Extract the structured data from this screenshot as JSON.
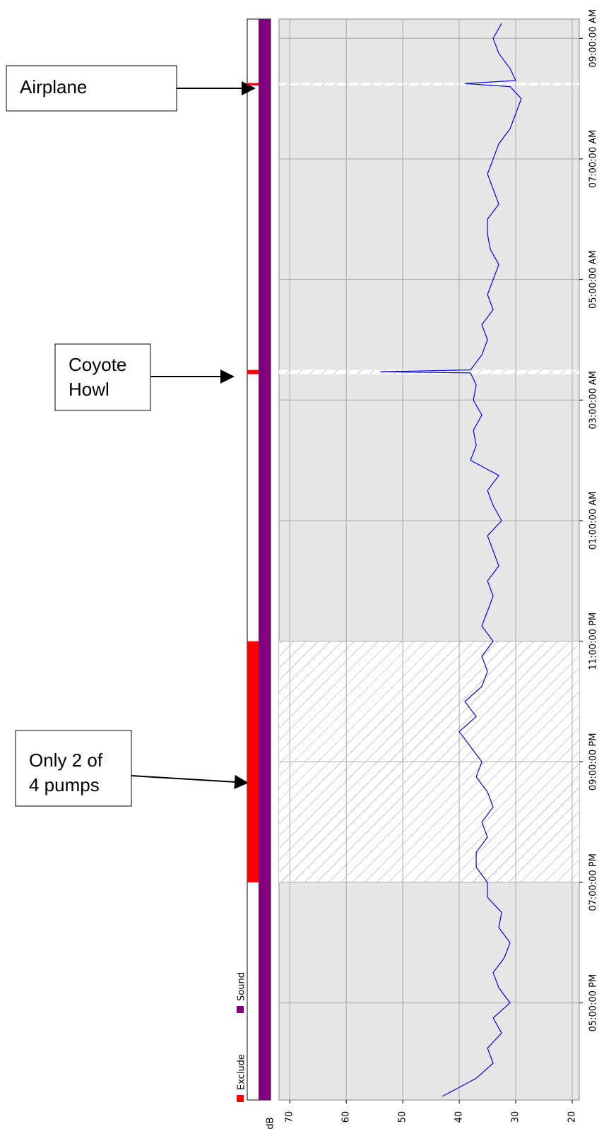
{
  "chart_data": {
    "type": "line",
    "x": [
      15.45,
      15.6,
      15.75,
      16.0,
      16.25,
      16.5,
      16.75,
      17.0,
      17.25,
      17.5,
      17.75,
      18.0,
      18.25,
      18.5,
      18.75,
      19.0,
      19.25,
      19.5,
      19.75,
      20.0,
      20.25,
      20.5,
      20.75,
      21.0,
      21.25,
      21.5,
      21.75,
      22.0,
      22.25,
      22.5,
      22.75,
      23.0,
      23.25,
      23.5,
      23.75,
      24.0,
      24.25,
      24.5,
      24.75,
      25.0,
      25.25,
      25.5,
      25.75,
      26.0,
      26.25,
      26.5,
      26.75,
      27.0,
      27.25,
      27.45,
      27.47,
      27.5,
      27.75,
      28.0,
      28.25,
      28.5,
      28.75,
      29.0,
      29.25,
      29.5,
      29.75,
      30.0,
      30.25,
      30.5,
      30.75,
      31.0,
      31.25,
      31.5,
      31.75,
      32.0,
      32.2,
      32.25,
      32.3,
      32.5,
      32.75,
      33.0,
      33.25
    ],
    "series": [
      {
        "color": "#0000ff",
        "values": [
          43,
          40,
          37,
          34,
          35,
          32.5,
          34,
          31,
          33,
          34,
          32,
          31,
          33,
          32.5,
          35,
          35,
          37,
          37,
          35,
          36,
          34,
          35,
          37,
          36,
          38,
          40,
          37,
          39,
          36,
          35,
          36,
          34,
          36,
          35,
          34,
          35,
          33,
          34,
          35,
          32.5,
          34,
          35,
          33,
          38,
          37,
          37.5,
          36,
          37.5,
          37,
          38,
          54,
          38,
          36,
          35,
          36,
          34,
          35,
          34,
          33,
          34.5,
          35,
          35,
          33,
          34,
          35,
          34,
          33,
          31,
          30,
          29,
          31,
          39,
          30,
          31,
          33,
          34,
          32.5
        ]
      }
    ],
    "xlim": [
      15.39,
      33.32
    ],
    "xticks": [
      {
        "value": 17,
        "label": "05:00:00 PM"
      },
      {
        "value": 19,
        "label": "07:00:00 PM"
      },
      {
        "value": 21,
        "label": "09:00:00 PM"
      },
      {
        "value": 23,
        "label": "11:00:00 PM"
      },
      {
        "value": 25,
        "label": "01:00:00 AM"
      },
      {
        "value": 27,
        "label": "03:00:00 AM"
      },
      {
        "value": 29,
        "label": "05:00:00 AM"
      },
      {
        "value": 31,
        "label": "07:00:00 AM"
      },
      {
        "value": 33,
        "label": "09:00:00 AM"
      }
    ],
    "ylim": [
      71.9,
      18.75
    ],
    "yticks": [
      70,
      60,
      50,
      40,
      30,
      20
    ],
    "ylabel": "dB",
    "grid": true,
    "exclusions": [
      {
        "start": 19,
        "end": 23
      },
      {
        "start": 27.43,
        "end": 27.5
      },
      {
        "start": 32.22,
        "end": 32.26
      }
    ],
    "strips": [
      {
        "name": "Exclude",
        "color": "#ff0000"
      },
      {
        "name": "Sound",
        "color": "#800080"
      }
    ],
    "annotations": [
      {
        "lines": [
          "Airplane"
        ]
      },
      {
        "lines": [
          "Coyote",
          "Howl"
        ]
      },
      {
        "lines": [
          "Only 2 of",
          "4 pumps"
        ]
      }
    ]
  }
}
